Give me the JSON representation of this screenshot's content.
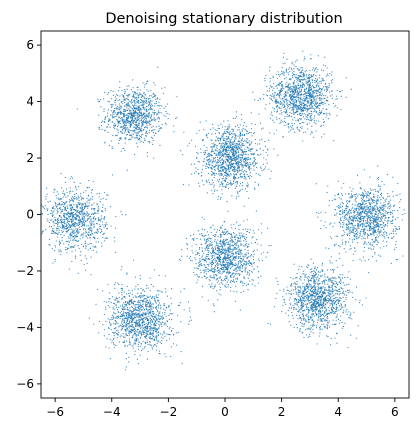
{
  "chart_data": {
    "type": "scatter",
    "title": "Denoising stationary distribution",
    "xlabel": "",
    "ylabel": "",
    "xlim": [
      -6.5,
      6.5
    ],
    "ylim": [
      -6.5,
      6.5
    ],
    "x_ticks": [
      -6,
      -4,
      -2,
      0,
      2,
      4,
      6
    ],
    "y_ticks": [
      -6,
      -4,
      -2,
      0,
      2,
      4,
      6
    ],
    "x_tick_labels": [
      "−6",
      "−4",
      "−2",
      "0",
      "2",
      "4",
      "6"
    ],
    "y_tick_labels": [
      "−6",
      "−4",
      "−2",
      "0",
      "2",
      "4",
      "6"
    ],
    "grid": false,
    "legend": "none",
    "marker_color": "#1f77b4",
    "clusters": [
      {
        "center": [
          -3.2,
          3.5
        ],
        "spread": 0.5,
        "count": 900
      },
      {
        "center": [
          2.7,
          4.2
        ],
        "spread": 0.55,
        "count": 1100
      },
      {
        "center": [
          0.2,
          2.0
        ],
        "spread": 0.55,
        "count": 1100
      },
      {
        "center": [
          -5.3,
          -0.2
        ],
        "spread": 0.55,
        "count": 900
      },
      {
        "center": [
          5.0,
          -0.1
        ],
        "spread": 0.55,
        "count": 1000
      },
      {
        "center": [
          0.0,
          -1.5
        ],
        "spread": 0.55,
        "count": 1000
      },
      {
        "center": [
          -3.0,
          -3.7
        ],
        "spread": 0.55,
        "count": 1100
      },
      {
        "center": [
          3.3,
          -3.0
        ],
        "spread": 0.55,
        "count": 1100
      }
    ]
  }
}
